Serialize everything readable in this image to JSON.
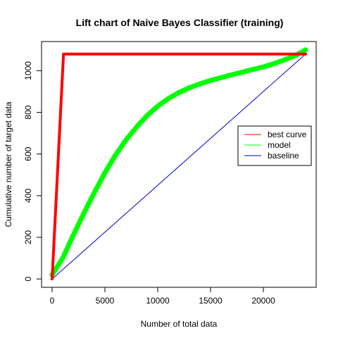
{
  "chart_data": {
    "type": "line",
    "title": "Lift chart of Naive Bayes Classifier (training)",
    "xlabel": "Number of total data",
    "ylabel": "Cumulative number of target data",
    "xlim": [
      -1000,
      25000
    ],
    "ylim": [
      -40,
      1140
    ],
    "xticks": [
      0,
      5000,
      10000,
      15000,
      20000
    ],
    "yticks": [
      0,
      200,
      400,
      600,
      800,
      1000
    ],
    "grid": false,
    "legend_position": "right",
    "series": [
      {
        "name": "best curve",
        "color": "#ff0000",
        "points": [
          [
            0,
            0
          ],
          [
            1080,
            1080
          ],
          [
            24000,
            1080
          ]
        ]
      },
      {
        "name": "model",
        "color": "#00ff00",
        "points": [
          [
            0,
            20
          ],
          [
            1000,
            100
          ],
          [
            2000,
            210
          ],
          [
            3000,
            315
          ],
          [
            4000,
            415
          ],
          [
            5000,
            510
          ],
          [
            6000,
            595
          ],
          [
            7000,
            668
          ],
          [
            8000,
            730
          ],
          [
            9000,
            785
          ],
          [
            10000,
            830
          ],
          [
            11000,
            866
          ],
          [
            12000,
            895
          ],
          [
            13000,
            918
          ],
          [
            14000,
            937
          ],
          [
            15000,
            953
          ],
          [
            16000,
            967
          ],
          [
            17000,
            980
          ],
          [
            18000,
            993
          ],
          [
            19000,
            1006
          ],
          [
            20000,
            1018
          ],
          [
            21000,
            1034
          ],
          [
            22000,
            1052
          ],
          [
            23000,
            1072
          ],
          [
            24000,
            1100
          ]
        ]
      },
      {
        "name": "baseline",
        "color": "#0000cc",
        "points": [
          [
            0,
            0
          ],
          [
            24000,
            1080
          ]
        ]
      }
    ]
  }
}
